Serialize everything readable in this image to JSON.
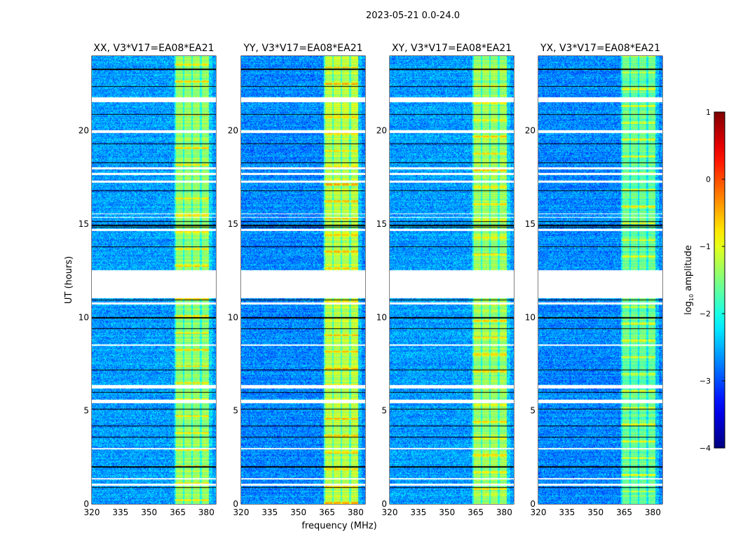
{
  "chart_data": {
    "type": "heatmap",
    "title": "2023-05-21 0.0-24.0",
    "xlabel": "frequency (MHz)",
    "ylabel": "UT (hours)",
    "xlim": [
      320,
      385
    ],
    "ylim": [
      0,
      24
    ],
    "xticks": [
      320,
      335,
      350,
      365,
      380
    ],
    "yticks": [
      0,
      5,
      10,
      15,
      20
    ],
    "panels": [
      {
        "title": "XX, V3*V17=EA08*EA21",
        "background_level": -2.6,
        "band_level": -1.4
      },
      {
        "title": "YY, V3*V17=EA08*EA21",
        "background_level": -2.7,
        "band_level": -1.2
      },
      {
        "title": "XY, V3*V17=EA08*EA21",
        "background_level": -2.6,
        "band_level": -1.35
      },
      {
        "title": "YX, V3*V17=EA08*EA21",
        "background_level": -2.7,
        "band_level": -1.6
      }
    ],
    "rfi_band_mhz": [
      363,
      381
    ],
    "flagged_hours": [
      [
        11.05,
        12.55
      ],
      [
        21.55,
        21.8
      ],
      [
        19.9,
        20.05
      ],
      [
        5.4,
        5.6
      ],
      [
        6.2,
        6.4
      ],
      [
        17.95,
        18.05
      ],
      [
        17.65,
        17.75
      ],
      [
        17.25,
        17.35
      ],
      [
        15.55,
        15.6
      ],
      [
        15.35,
        15.4
      ],
      [
        14.65,
        14.75
      ],
      [
        1.35,
        1.42
      ],
      [
        1.0,
        1.1
      ],
      [
        10.7,
        10.8
      ],
      [
        2.95,
        3.0
      ],
      [
        8.5,
        8.55
      ]
    ],
    "gap_lines_hours": [
      23.3,
      22.4,
      20.9,
      19.3,
      18.3,
      16.8,
      15.15,
      14.95,
      14.85,
      13.8,
      10.95,
      10.0,
      9.4,
      7.2,
      6.0,
      5.1,
      4.2,
      3.6,
      2.0,
      0.9
    ],
    "colorbar": {
      "label": "log10 amplitude",
      "label_main": "log",
      "label_sub": "10",
      "label_rest": " amplitude",
      "min": -4,
      "max": 1,
      "ticks": [
        "1",
        "0",
        "−1",
        "−2",
        "−3",
        "−4"
      ],
      "tick_values": [
        1,
        0,
        -1,
        -2,
        -3,
        -4
      ],
      "colormap": "jet"
    }
  }
}
